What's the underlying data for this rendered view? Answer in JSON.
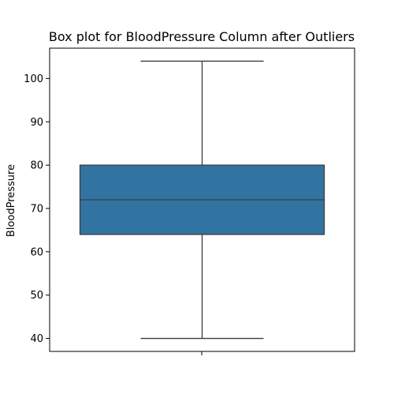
{
  "chart_data": {
    "type": "box",
    "title": "Box plot for BloodPressure Column after Outliers",
    "xlabel": "",
    "ylabel": "BloodPressure",
    "ylim": [
      37,
      107
    ],
    "yticks": [
      40,
      50,
      60,
      70,
      80,
      90,
      100
    ],
    "grid": false,
    "box": {
      "whisker_low": 40,
      "q1": 64,
      "median": 72,
      "q3": 80,
      "whisker_high": 104
    },
    "colors": {
      "box_fill": "#3274a1",
      "lines": "#3d3d3d",
      "frame": "#000000"
    }
  }
}
